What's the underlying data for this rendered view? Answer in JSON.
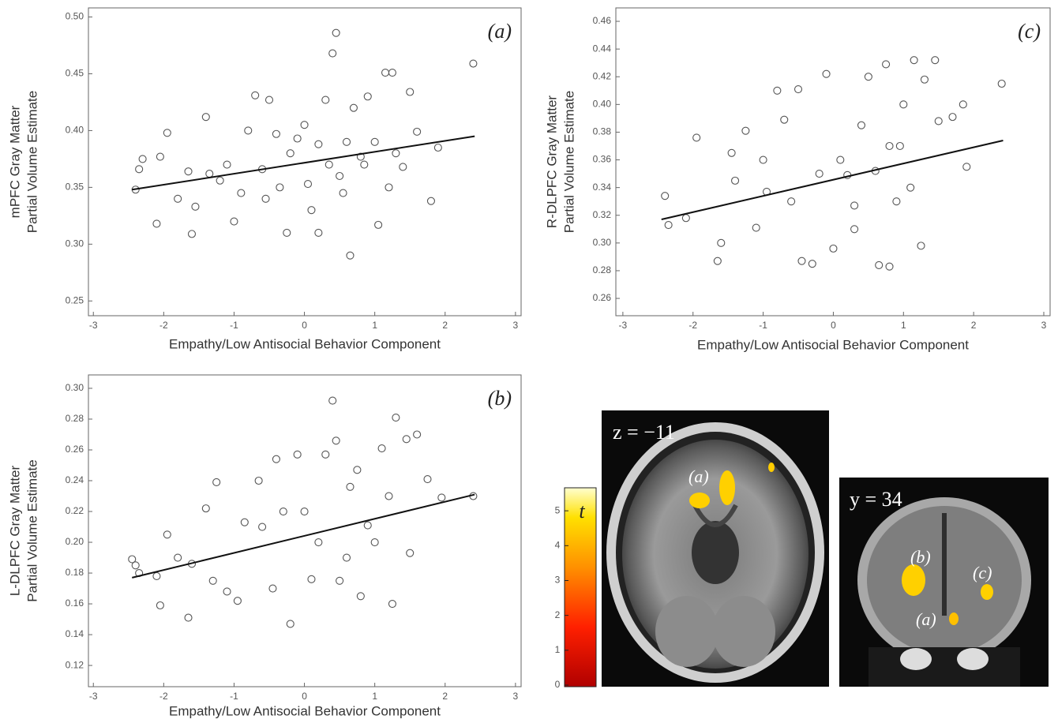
{
  "chart_data": [
    {
      "type": "scatter",
      "panel_label": "(a)",
      "xlabel": "Empathy/Low Antisocial Behavior Component",
      "ylabel": [
        "mPFC Gray Matter",
        "Partial Volume Estimate"
      ],
      "xlim": [
        -3.07,
        3.08
      ],
      "ylim": [
        0.237,
        0.508
      ],
      "xticks": [
        -3,
        -2,
        -1,
        0,
        1,
        2,
        3
      ],
      "yticks": [
        0.25,
        {
          "value": 0.3,
          "label": "0.30"
        },
        0.35,
        {
          "value": 0.4,
          "label": "0.40"
        },
        0.45,
        {
          "value": 0.5,
          "label": "0.50"
        }
      ],
      "series": [
        {
          "color": "#555555",
          "x": [
            -2.4,
            -2.35,
            -2.3,
            -2.1,
            -2.05,
            -1.95,
            -1.65,
            -1.6,
            -1.55,
            -1.4,
            -1.35,
            -1.2,
            -1.1,
            -1.0,
            -0.9,
            -0.8,
            -0.7,
            -0.6,
            -0.5,
            -0.4,
            -0.35,
            -0.25,
            -0.1,
            0,
            0.05,
            0.1,
            0.2,
            0.3,
            0.4,
            0.45,
            0.5,
            0.55,
            0.65,
            0.7,
            0.8,
            0.9,
            1.0,
            1.05,
            1.15,
            1.25,
            1.3,
            1.4,
            1.5,
            1.6,
            1.8,
            1.9,
            2.4,
            0.2,
            -0.55,
            0.85,
            -1.8,
            0.6,
            1.2,
            -0.2,
            0.35
          ],
          "values": [
            0.348,
            0.366,
            0.375,
            0.318,
            0.377,
            0.398,
            0.364,
            0.309,
            0.333,
            0.412,
            0.362,
            0.356,
            0.37,
            0.32,
            0.345,
            0.4,
            0.431,
            0.366,
            0.427,
            0.397,
            0.35,
            0.31,
            0.393,
            0.405,
            0.353,
            0.33,
            0.388,
            0.427,
            0.468,
            0.486,
            0.36,
            0.345,
            0.29,
            0.42,
            0.377,
            0.43,
            0.39,
            0.317,
            0.451,
            0.451,
            0.38,
            0.368,
            0.434,
            0.399,
            0.338,
            0.385,
            0.459,
            0.31,
            0.34,
            0.37,
            0.34,
            0.39,
            0.35,
            0.38,
            0.37
          ]
        }
      ],
      "fit": {
        "color": "#111111",
        "x": [
          -2.45,
          2.42
        ],
        "values": [
          0.348,
          0.395
        ]
      }
    },
    {
      "type": "scatter",
      "panel_label": "(c)",
      "xlabel": "Empathy/Low Antisocial Behavior Component",
      "ylabel": [
        "R-DLPFC Gray Matter",
        "Partial Volume Estimate"
      ],
      "xlim": [
        -3.1,
        3.09
      ],
      "ylim": [
        0.2475,
        0.4697
      ],
      "xticks": [
        -3,
        -2,
        -1,
        0,
        1,
        2,
        3
      ],
      "yticks": [
        0.26,
        0.28,
        {
          "value": 0.3,
          "label": "0.30"
        },
        0.32,
        0.34,
        0.36,
        0.38,
        {
          "value": 0.4,
          "label": "0.40"
        },
        0.42,
        0.44,
        0.46
      ],
      "series": [
        {
          "color": "#555555",
          "x": [
            -2.4,
            -2.35,
            -2.1,
            -1.95,
            -1.65,
            -1.6,
            -1.45,
            -1.25,
            -1.1,
            -0.95,
            -0.8,
            -0.7,
            -0.5,
            -0.45,
            -0.3,
            -0.1,
            0,
            0.1,
            0.2,
            0.3,
            0.4,
            0.5,
            0.6,
            0.65,
            0.75,
            0.8,
            0.9,
            1.0,
            1.15,
            1.3,
            1.45,
            1.5,
            1.7,
            1.85,
            1.9,
            2.4,
            1.25,
            0.8,
            -1.4,
            -0.6,
            0.3,
            1.1,
            -0.2,
            0.95,
            -1.0
          ],
          "values": [
            0.334,
            0.313,
            0.318,
            0.376,
            0.287,
            0.3,
            0.365,
            0.381,
            0.311,
            0.337,
            0.41,
            0.389,
            0.411,
            0.287,
            0.285,
            0.422,
            0.296,
            0.36,
            0.349,
            0.327,
            0.385,
            0.42,
            0.352,
            0.284,
            0.429,
            0.37,
            0.33,
            0.4,
            0.432,
            0.418,
            0.432,
            0.388,
            0.391,
            0.4,
            0.355,
            0.415,
            0.298,
            0.283,
            0.345,
            0.33,
            0.31,
            0.34,
            0.35,
            0.37,
            0.36
          ]
        }
      ],
      "fit": {
        "color": "#111111",
        "x": [
          -2.45,
          2.42
        ],
        "values": [
          0.317,
          0.374
        ]
      }
    },
    {
      "type": "scatter",
      "panel_label": "(b)",
      "xlabel": "Empathy/Low Antisocial Behavior Component",
      "ylabel": [
        "L-DLPFC Gray Matter",
        "Partial Volume Estimate"
      ],
      "xlim": [
        -3.07,
        3.08
      ],
      "ylim": [
        0.1062,
        0.3087
      ],
      "xticks": [
        -3,
        -2,
        -1,
        0,
        1,
        2,
        3
      ],
      "yticks": [
        0.12,
        0.14,
        0.16,
        0.18,
        {
          "value": 0.2,
          "label": "0.20"
        },
        0.22,
        0.24,
        0.26,
        0.28,
        {
          "value": 0.3,
          "label": "0.30"
        }
      ],
      "series": [
        {
          "color": "#555555",
          "x": [
            -2.45,
            -2.4,
            -2.35,
            -2.1,
            -2.05,
            -1.95,
            -1.65,
            -1.6,
            -1.4,
            -1.25,
            -1.1,
            -0.95,
            -0.85,
            -0.65,
            -0.45,
            -0.4,
            -0.2,
            -0.1,
            0,
            0.1,
            0.3,
            0.4,
            0.45,
            0.5,
            0.65,
            0.75,
            0.9,
            1.0,
            1.1,
            1.25,
            1.3,
            1.45,
            1.6,
            1.75,
            1.95,
            2.4,
            1.5,
            -1.3,
            -0.6,
            0.2,
            0.8,
            -0.3,
            1.2,
            0.6,
            -1.8
          ],
          "values": [
            0.189,
            0.185,
            0.18,
            0.178,
            0.159,
            0.205,
            0.151,
            0.186,
            0.222,
            0.239,
            0.168,
            0.162,
            0.213,
            0.24,
            0.17,
            0.254,
            0.147,
            0.257,
            0.22,
            0.176,
            0.257,
            0.292,
            0.266,
            0.175,
            0.236,
            0.247,
            0.211,
            0.2,
            0.261,
            0.16,
            0.281,
            0.267,
            0.27,
            0.241,
            0.229,
            0.23,
            0.193,
            0.175,
            0.21,
            0.2,
            0.165,
            0.22,
            0.23,
            0.19,
            0.19
          ]
        }
      ],
      "fit": {
        "color": "#111111",
        "x": [
          -2.45,
          2.42
        ],
        "values": [
          0.177,
          0.231
        ]
      }
    }
  ],
  "brain_figure": {
    "colorbar": {
      "label": "t",
      "lim": [
        0,
        5.66
      ],
      "ticks": [
        0,
        1,
        2,
        3,
        4,
        5
      ]
    },
    "axial": {
      "label": "z = −11",
      "regions": [
        "(a)"
      ]
    },
    "coronal": {
      "label": "y = 34",
      "regions": [
        "(b)",
        "(c)",
        "(a)"
      ]
    }
  }
}
